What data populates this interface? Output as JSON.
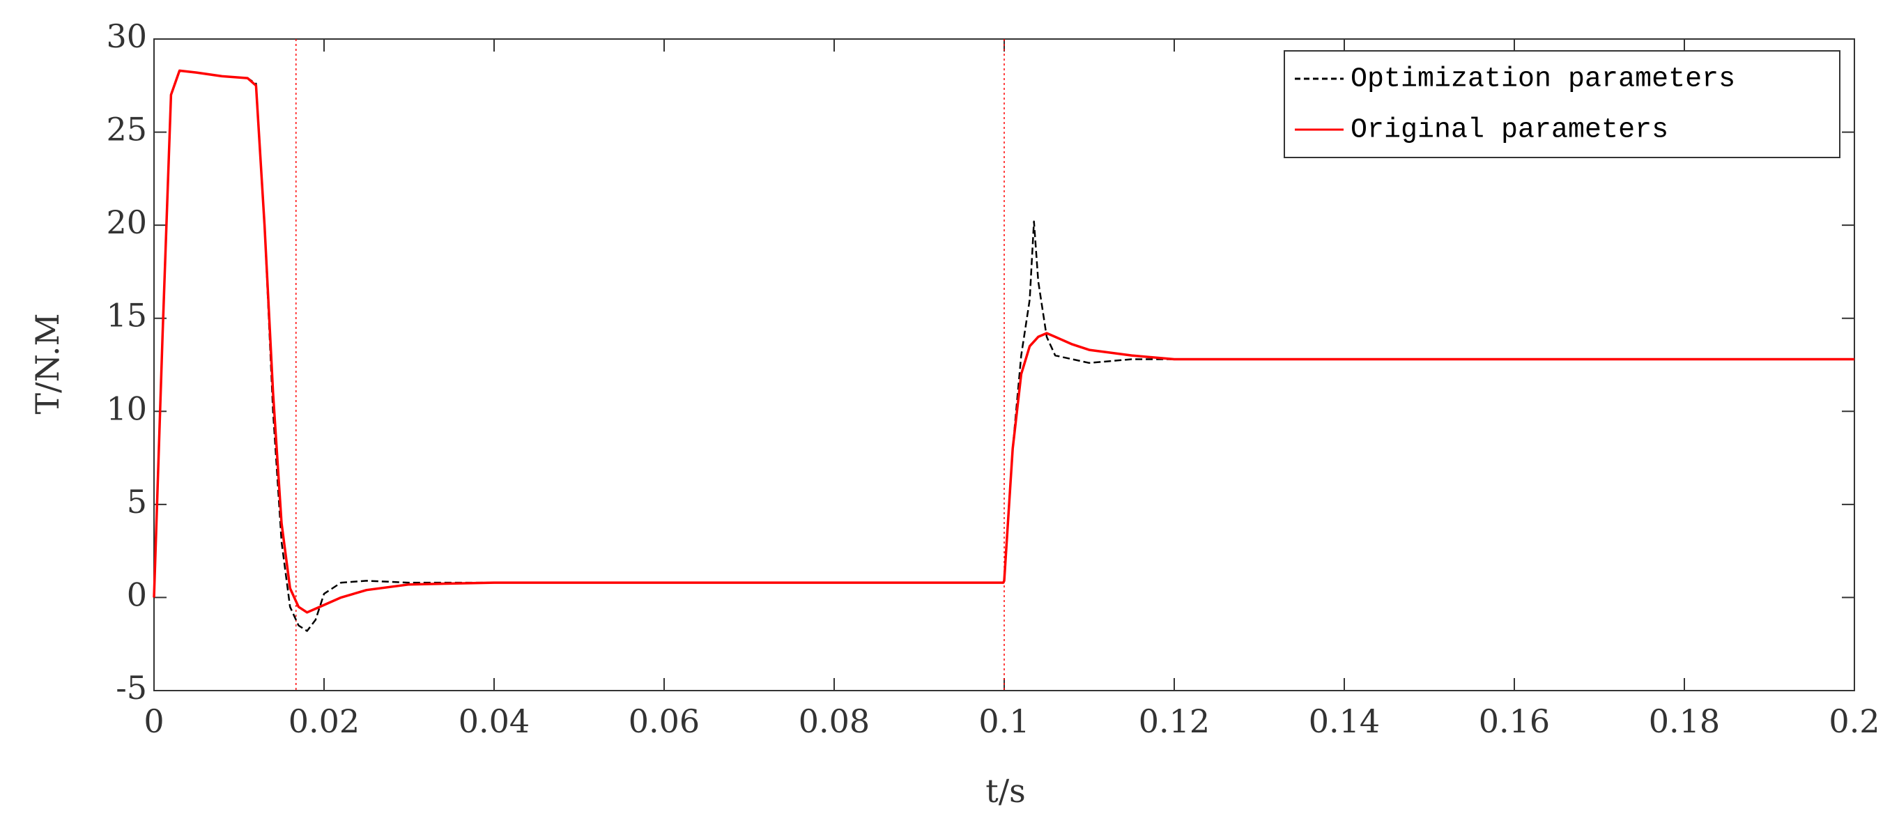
{
  "chart_data": {
    "type": "line",
    "xlabel": "t/s",
    "ylabel": "T/N.M",
    "xlim": [
      0,
      0.2
    ],
    "ylim": [
      -5,
      30
    ],
    "xticks": [
      0,
      0.02,
      0.04,
      0.06,
      0.08,
      0.1,
      0.12,
      0.14,
      0.16,
      0.18,
      0.2
    ],
    "yticks": [
      -5,
      0,
      5,
      10,
      15,
      20,
      25,
      30
    ],
    "grid": false,
    "legend": "upper right",
    "reference_lines": {
      "x": [
        0.0167,
        0.1
      ],
      "color": "#ff0000"
    },
    "series": [
      {
        "name": "Optimization parameters",
        "color": "#000000",
        "dash": true,
        "x": [
          0,
          0.001,
          0.002,
          0.003,
          0.005,
          0.008,
          0.011,
          0.012,
          0.013,
          0.014,
          0.015,
          0.016,
          0.017,
          0.018,
          0.019,
          0.02,
          0.022,
          0.025,
          0.03,
          0.04,
          0.06,
          0.08,
          0.0999,
          0.1,
          0.101,
          0.102,
          0.103,
          0.1035,
          0.104,
          0.105,
          0.106,
          0.108,
          0.11,
          0.115,
          0.12,
          0.14,
          0.16,
          0.18,
          0.2
        ],
        "values": [
          0,
          14,
          27,
          28.3,
          28.2,
          28,
          27.9,
          27.6,
          20,
          10,
          3,
          -0.5,
          -1.5,
          -1.8,
          -1.2,
          0.2,
          0.8,
          0.9,
          0.8,
          0.8,
          0.8,
          0.8,
          0.8,
          0.9,
          8,
          13,
          16,
          20.2,
          17,
          14,
          13,
          12.8,
          12.6,
          12.8,
          12.8,
          12.8,
          12.8,
          12.8,
          12.8
        ]
      },
      {
        "name": "Original parameters",
        "color": "#ff0000",
        "dash": false,
        "x": [
          0,
          0.001,
          0.002,
          0.003,
          0.005,
          0.008,
          0.011,
          0.012,
          0.013,
          0.014,
          0.015,
          0.016,
          0.017,
          0.018,
          0.019,
          0.02,
          0.022,
          0.025,
          0.03,
          0.04,
          0.06,
          0.08,
          0.0999,
          0.1,
          0.101,
          0.102,
          0.103,
          0.104,
          0.105,
          0.106,
          0.108,
          0.11,
          0.115,
          0.12,
          0.14,
          0.16,
          0.18,
          0.2
        ],
        "values": [
          0,
          14,
          27,
          28.3,
          28.2,
          28,
          27.9,
          27.5,
          20,
          11,
          4,
          0.5,
          -0.5,
          -0.8,
          -0.6,
          -0.4,
          0,
          0.4,
          0.7,
          0.8,
          0.8,
          0.8,
          0.8,
          0.9,
          8,
          12,
          13.5,
          14,
          14.2,
          14,
          13.6,
          13.3,
          13,
          12.8,
          12.8,
          12.8,
          12.8,
          12.8
        ]
      }
    ]
  }
}
